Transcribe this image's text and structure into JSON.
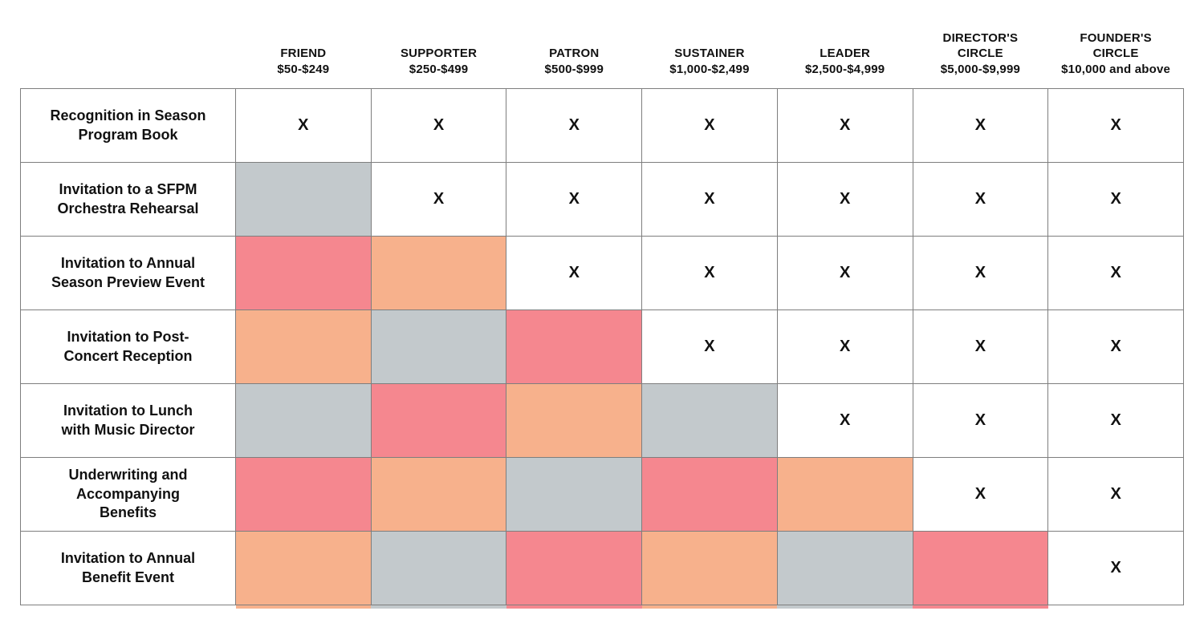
{
  "chart_data": {
    "type": "table",
    "check_mark": "X",
    "tiers": [
      {
        "name": "FRIEND",
        "range": "$50-$249"
      },
      {
        "name": "SUPPORTER",
        "range": "$250-$499"
      },
      {
        "name": "PATRON",
        "range": "$500-$999"
      },
      {
        "name": "SUSTAINER",
        "range": "$1,000-$2,499"
      },
      {
        "name": "LEADER",
        "range": "$2,500-$4,999"
      },
      {
        "name": "DIRECTOR'S CIRCLE",
        "range": "$5,000-$9,999"
      },
      {
        "name": "FOUNDER'S CIRCLE",
        "range": "$10,000 and above"
      }
    ],
    "benefits": [
      {
        "label": "Recognition in Season Program Book",
        "cells": [
          "x",
          "x",
          "x",
          "x",
          "x",
          "x",
          "x"
        ]
      },
      {
        "label": "Invitation to a SFPM Orchestra Rehearsal",
        "cells": [
          "gray",
          "x",
          "x",
          "x",
          "x",
          "x",
          "x"
        ]
      },
      {
        "label": "Invitation to Annual Season Preview Event",
        "cells": [
          "red",
          "peach",
          "x",
          "x",
          "x",
          "x",
          "x"
        ]
      },
      {
        "label": "Invitation to Post-Concert Reception",
        "cells": [
          "peach",
          "gray",
          "red",
          "x",
          "x",
          "x",
          "x"
        ]
      },
      {
        "label": "Invitation to Lunch with Music Director",
        "cells": [
          "gray",
          "red",
          "peach",
          "gray",
          "x",
          "x",
          "x"
        ]
      },
      {
        "label": "Underwriting and Accompanying Benefits",
        "cells": [
          "red",
          "peach",
          "gray",
          "red",
          "peach",
          "x",
          "x"
        ]
      },
      {
        "label": "Invitation to Annual Benefit Event",
        "cells": [
          "peach",
          "gray",
          "red",
          "peach",
          "gray",
          "red",
          "x"
        ]
      }
    ]
  },
  "colors": {
    "red": "#F5878F",
    "peach": "#F7B18C",
    "gray": "#C3C9CC",
    "border": "#7E7E7E",
    "text": "#111111",
    "background": "#FFFFFF"
  }
}
